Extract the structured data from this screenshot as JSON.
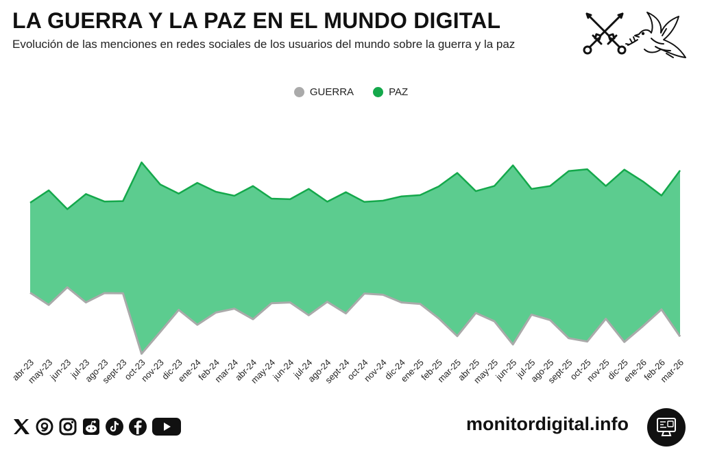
{
  "header": {
    "title": "LA GUERRA Y LA PAZ EN EL MUNDO DIGITAL",
    "subtitle": "Evolución de las menciones en redes sociales de los usuarios del mundo sobre la guerra y la paz"
  },
  "legend": [
    {
      "label": "GUERRA",
      "color": "#aaaaaa"
    },
    {
      "label": "PAZ",
      "color": "#14a84b"
    }
  ],
  "colors": {
    "fill": "#5ccc8f",
    "paz_line": "#14a84b",
    "guerra_line": "#aaaaaa"
  },
  "chart_data": {
    "type": "area",
    "title": "LA GUERRA Y LA PAZ EN EL MUNDO DIGITAL",
    "xlabel": "",
    "ylabel": "",
    "y_axis_visible": false,
    "ylim": [
      0,
      100
    ],
    "categories": [
      "abr-23",
      "may-23",
      "jun-23",
      "jul-23",
      "ago-23",
      "sept-23",
      "oct-23",
      "nov-23",
      "dic-23",
      "ene-24",
      "feb-24",
      "mar-24",
      "abr-24",
      "may-24",
      "jun-24",
      "jul-24",
      "ago-24",
      "sept-24",
      "oct-24",
      "nov-24",
      "dic-24",
      "ene-25",
      "feb-25",
      "mar-25",
      "abr-25",
      "may-25",
      "jun-25",
      "jul-25",
      "ago-25",
      "sept-25",
      "oct-25",
      "nov-25",
      "dic-25",
      "ene-26",
      "feb-26",
      "mar-26"
    ],
    "series": [
      {
        "name": "PAZ (upper boundary)",
        "values": [
          73.5,
          79.5,
          70.4,
          77.7,
          74.1,
          74.3,
          93.0,
          82.4,
          77.9,
          83.1,
          78.8,
          76.9,
          81.6,
          75.5,
          75.2,
          80.2,
          74.0,
          78.6,
          73.9,
          74.5,
          76.6,
          77.2,
          81.4,
          87.9,
          79.1,
          81.6,
          91.6,
          80.2,
          81.6,
          88.8,
          89.7,
          81.6,
          89.5,
          83.8,
          77.0,
          89.1
        ]
      },
      {
        "name": "GUERRA (lower boundary)",
        "values": [
          30.0,
          24.1,
          32.6,
          25.3,
          29.8,
          29.7,
          0.5,
          11.0,
          21.7,
          14.5,
          20.4,
          22.3,
          17.2,
          24.9,
          25.3,
          19.1,
          25.6,
          20.0,
          29.6,
          29.0,
          25.3,
          24.6,
          17.6,
          9.0,
          20.2,
          16.2,
          5.0,
          19.4,
          16.8,
          8.0,
          6.4,
          17.4,
          6.2,
          13.8,
          21.9,
          8.8
        ]
      }
    ]
  },
  "footer": {
    "website": "monitordigital.info",
    "social_icons": [
      "x-icon",
      "threads-icon",
      "instagram-icon",
      "reddit-icon",
      "tiktok-icon",
      "facebook-icon",
      "youtube-icon"
    ]
  }
}
